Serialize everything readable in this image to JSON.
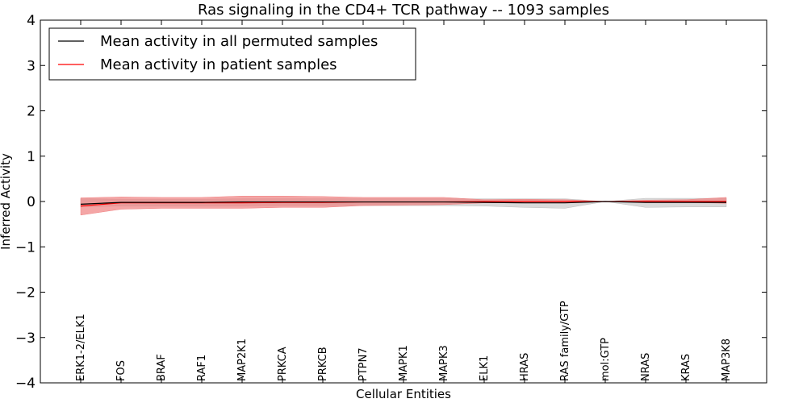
{
  "chart_data": {
    "type": "line",
    "title": "Ras signaling in the CD4+ TCR pathway -- 1093 samples",
    "xlabel": "Cellular Entities",
    "ylabel": "Inferred Activity",
    "ylim": [
      -4,
      4
    ],
    "yticks": [
      -4,
      -3,
      -2,
      -1,
      0,
      1,
      2,
      3,
      4
    ],
    "ytick_labels": [
      "−4",
      "−3",
      "−2",
      "−1",
      "0",
      "1",
      "2",
      "3",
      "4"
    ],
    "grid": false,
    "legend_position": "top-left",
    "categories": [
      "ERK1-2/ELK1",
      "FOS",
      "BRAF",
      "RAF1",
      "MAP2K1",
      "PRKCA",
      "PRKCB",
      "PTPN7",
      "MAPK1",
      "MAPK3",
      "ELK1",
      "HRAS",
      "RAS family/GTP",
      "mol:GTP",
      "NRAS",
      "KRAS",
      "MAP3K8"
    ],
    "series": [
      {
        "name": "Mean activity in all permuted samples",
        "color": "#000000",
        "band_color": "#bfbfbf",
        "values": [
          -0.06,
          -0.02,
          -0.02,
          -0.02,
          -0.01,
          -0.01,
          -0.01,
          -0.01,
          -0.01,
          -0.01,
          -0.02,
          -0.03,
          -0.03,
          0.0,
          -0.02,
          -0.02,
          -0.02
        ],
        "lower": [
          -0.12,
          -0.1,
          -0.1,
          -0.1,
          -0.1,
          -0.09,
          -0.09,
          -0.09,
          -0.09,
          -0.09,
          -0.1,
          -0.13,
          -0.15,
          0.0,
          -0.13,
          -0.12,
          -0.12
        ],
        "upper": [
          0.06,
          0.05,
          0.05,
          0.05,
          0.06,
          0.06,
          0.06,
          0.06,
          0.06,
          0.06,
          0.06,
          0.06,
          0.06,
          0.0,
          0.07,
          0.07,
          0.07
        ]
      },
      {
        "name": "Mean activity in patient samples",
        "color": "#ff0000",
        "band_color": "#f08080",
        "values": [
          -0.1,
          -0.03,
          -0.03,
          -0.03,
          -0.03,
          -0.02,
          -0.02,
          -0.01,
          -0.01,
          -0.01,
          0.0,
          0.0,
          0.0,
          0.0,
          0.0,
          0.0,
          0.0
        ],
        "lower": [
          -0.3,
          -0.17,
          -0.15,
          -0.15,
          -0.15,
          -0.13,
          -0.13,
          -0.09,
          -0.08,
          -0.07,
          -0.03,
          -0.03,
          -0.02,
          0.0,
          -0.01,
          -0.02,
          -0.04
        ],
        "upper": [
          0.08,
          0.1,
          0.09,
          0.09,
          0.12,
          0.12,
          0.11,
          0.09,
          0.09,
          0.09,
          0.04,
          0.05,
          0.04,
          0.0,
          0.03,
          0.04,
          0.09
        ]
      }
    ]
  }
}
